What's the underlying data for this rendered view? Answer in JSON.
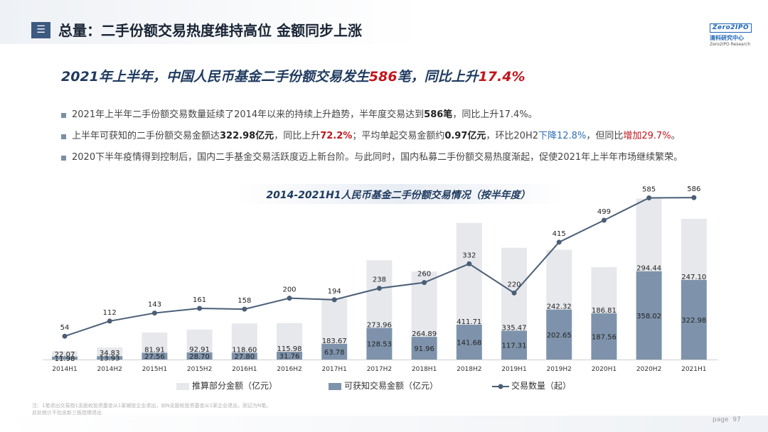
{
  "header": {
    "menu_icon": "menu-icon",
    "title": "总量：二手份额交易热度维持高位 金额同步上涨",
    "logo": {
      "mark": "Zero2IPO",
      "cn": "清科研究中心",
      "en": "Zero2IPO Research"
    }
  },
  "headline": {
    "part1": "2021年上半年，中国人民币基金二手份额交易发生",
    "num1": "586",
    "part2": "笔，同比上升",
    "num2": "17.4%"
  },
  "bullets": {
    "b1": {
      "t1": "2021年上半年二手份额交易数量延续了2014年以来的持续上升趋势，半年度交易达到",
      "v1": "586笔",
      "t2": "，同比上升17.4%。"
    },
    "b2": {
      "t1": "上半年可获知的二手份额交易金额达",
      "v1": "322.98亿元",
      "t2": "，同比上升",
      "v2": "72.2%",
      "t3": "；平均单起交易金额约",
      "v3": "0.97亿元",
      "t4": "，环比20H2",
      "v4": "下降12.8%",
      "t5": "，但同比",
      "v5": "增加29.7%",
      "t6": "。"
    },
    "b3": {
      "t1": "2020下半年疫情得到控制后，国内二手基金交易活跃度迈上新台阶。与此同时，国内私募二手份额交易热度渐起，促使2021年上半年市场继续繁荣。"
    }
  },
  "chart_data": {
    "type": "bar",
    "title": "2014-2021H1人民币基金二手份额交易情况（按半年度）",
    "categories": [
      "2014H1",
      "2014H2",
      "2015H1",
      "2015H2",
      "2016H1",
      "2016H2",
      "2017H1",
      "2017H2",
      "2018H1",
      "2018H2",
      "2019H1",
      "2019H2",
      "2020H1",
      "2020H2",
      "2021H1"
    ],
    "series": [
      {
        "name": "可获知交易金额（亿元）",
        "kind": "stacked-bar",
        "color": "#7e93ab",
        "values": [
          11.98,
          13.93,
          27.56,
          28.7,
          27.8,
          31.76,
          63.78,
          128.53,
          91.96,
          141.68,
          117.31,
          202.65,
          187.56,
          358.02,
          322.98
        ]
      },
      {
        "name": "推算部分金额（亿元）",
        "kind": "stacked-bar",
        "color": "#e6e8ec",
        "values": [
          22.07,
          34.83,
          81.91,
          92.91,
          118.6,
          115.98,
          183.67,
          273.96,
          264.89,
          411.71,
          335.47,
          242.32,
          186.81,
          294.44,
          247.1
        ]
      },
      {
        "name": "交易数量（起）",
        "kind": "line",
        "color": "#4a5e76",
        "values": [
          54,
          112,
          143,
          161,
          158,
          200,
          194,
          238,
          260,
          332,
          220,
          415,
          499,
          585,
          586
        ]
      }
    ],
    "legend_position": "bottom",
    "grid": false
  },
  "legend": {
    "estimated": "推算部分金额（亿元）",
    "known": "可获知交易金额（亿元）",
    "count": "交易数量（起）"
  },
  "note": {
    "line1": "注：1笔退出交易指1支股权投资基金从1家被投企业退出，如N支股权投资基金从1家企业退出，则记为N笔。",
    "line2": "此处统计不包含新三板挂牌退出"
  },
  "footer": {
    "page_label": "page",
    "page_number": "97"
  }
}
